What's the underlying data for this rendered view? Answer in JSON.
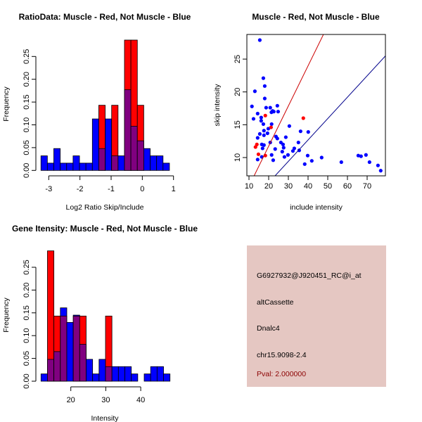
{
  "colors": {
    "muscle": "#ff0000",
    "not_muscle": "#0000ff",
    "overlap": "#800080",
    "info_bg": "#e5c7c2",
    "pval": "#8b0000"
  },
  "chart_data": [
    {
      "type": "bar",
      "subtype": "overlaid-histogram",
      "title": "RatioData: Muscle - Red, Not Muscle - Blue",
      "xlabel": "Log2 Ratio Skip/Include",
      "ylabel": "Frequency",
      "xlim": [
        -3.25,
        0.87
      ],
      "ylim": [
        0,
        0.29
      ],
      "xticks": [
        -3,
        -2,
        -1,
        0,
        1
      ],
      "yticks": [
        "0.00",
        "0.05",
        "0.10",
        "0.15",
        "0.20",
        "0.25"
      ],
      "bin_start": -3.25,
      "bin_width": 0.206,
      "series": [
        {
          "name": "Not Muscle",
          "color": "blue",
          "values": [
            0.032,
            0.016,
            0.048,
            0.016,
            0.016,
            0.032,
            0.016,
            0.016,
            0.113,
            0.048,
            0.113,
            0.032,
            0.032,
            0.177,
            0.097,
            0.065,
            0.048,
            0.032,
            0.032,
            0.016
          ]
        },
        {
          "name": "Muscle",
          "color": "red",
          "values": [
            0,
            0,
            0,
            0,
            0,
            0,
            0,
            0,
            0,
            0.143,
            0,
            0.143,
            0,
            0.286,
            0.286,
            0.143,
            0,
            0,
            0,
            0
          ]
        }
      ]
    },
    {
      "type": "scatter",
      "title": "Muscle - Red, Not Muscle - Blue",
      "xlabel": "include intensity",
      "ylabel": "skip intensity",
      "xlim": [
        8.9,
        79.3
      ],
      "ylim": [
        7.2,
        28.75
      ],
      "xticks": [
        10,
        20,
        30,
        40,
        50,
        60,
        70
      ],
      "yticks": [
        10,
        15,
        20,
        25
      ],
      "series": [
        {
          "name": "Not Muscle",
          "color": "blue",
          "points": [
            [
              15.5,
              27.9
            ],
            [
              17.3,
              22.1
            ],
            [
              18.0,
              20.9
            ],
            [
              13.0,
              20.1
            ],
            [
              18.0,
              19.0
            ],
            [
              11.5,
              17.8
            ],
            [
              18.7,
              17.6
            ],
            [
              20.8,
              17.6
            ],
            [
              24.4,
              17.9
            ],
            [
              22.0,
              17.1
            ],
            [
              22.6,
              17.0
            ],
            [
              21.4,
              16.9
            ],
            [
              24.8,
              17.0
            ],
            [
              14.4,
              16.7
            ],
            [
              16.2,
              16.1
            ],
            [
              12.3,
              15.9
            ],
            [
              16.2,
              15.6
            ],
            [
              17.3,
              15.1
            ],
            [
              21.5,
              15.1
            ],
            [
              30.5,
              14.8
            ],
            [
              19.8,
              14.4
            ],
            [
              17.6,
              14.1
            ],
            [
              36.2,
              14.0
            ],
            [
              40.1,
              13.9
            ],
            [
              19.4,
              13.7
            ],
            [
              15.5,
              13.6
            ],
            [
              17.6,
              13.4
            ],
            [
              23.7,
              13.2
            ],
            [
              14.4,
              13.0
            ],
            [
              24.4,
              12.9
            ],
            [
              28.7,
              13.1
            ],
            [
              20.8,
              12.3
            ],
            [
              26.2,
              12.3
            ],
            [
              35.1,
              12.3
            ],
            [
              16.5,
              12.0
            ],
            [
              17.6,
              11.9
            ],
            [
              27.3,
              12.0
            ],
            [
              16.9,
              11.4
            ],
            [
              27.6,
              11.5
            ],
            [
              23.3,
              11.3
            ],
            [
              33.0,
              11.4
            ],
            [
              32.3,
              11.0
            ],
            [
              35.5,
              11.1
            ],
            [
              26.9,
              10.9
            ],
            [
              21.5,
              10.4
            ],
            [
              29.8,
              10.4
            ],
            [
              16.5,
              10.1
            ],
            [
              28.0,
              10.1
            ],
            [
              39.8,
              10.3
            ],
            [
              46.9,
              10.0
            ],
            [
              14.4,
              9.7
            ],
            [
              22.3,
              9.6
            ],
            [
              41.9,
              9.5
            ],
            [
              56.9,
              9.3
            ],
            [
              65.5,
              10.3
            ],
            [
              66.9,
              10.2
            ],
            [
              69.4,
              10.4
            ],
            [
              71.2,
              9.3
            ],
            [
              38.3,
              9.0
            ],
            [
              75.5,
              8.8
            ],
            [
              76.9,
              8.0
            ]
          ]
        },
        {
          "name": "Muscle",
          "color": "red",
          "points": [
            [
              18.3,
              16.4
            ],
            [
              37.6,
              16.0
            ],
            [
              21.2,
              14.6
            ],
            [
              14.0,
              12.0
            ],
            [
              13.3,
              11.6
            ],
            [
              14.8,
              10.5
            ],
            [
              18.3,
              10.3
            ]
          ]
        }
      ],
      "lines": [
        {
          "name": "muscle-fit",
          "color": "#cc0000",
          "slope": 0.612,
          "intercept": -0.5
        },
        {
          "name": "not-muscle-fit",
          "color": "#00008b",
          "slope": 0.326,
          "intercept": -0.36
        }
      ]
    },
    {
      "type": "bar",
      "subtype": "overlaid-histogram",
      "title": "Gene Itensity: Muscle - Red, Not Muscle - Blue",
      "xlabel": "Intensity",
      "ylabel": "Frequency",
      "xlim": [
        11.47,
        48.4
      ],
      "ylim": [
        0,
        0.29
      ],
      "xticks": [
        20,
        30,
        40
      ],
      "yticks": [
        "0.00",
        "0.05",
        "0.10",
        "0.15",
        "0.20",
        "0.25"
      ],
      "bin_start": 11.47,
      "bin_width": 1.845,
      "series": [
        {
          "name": "Not Muscle",
          "color": "blue",
          "values": [
            0.016,
            0.048,
            0.065,
            0.161,
            0.129,
            0.145,
            0.081,
            0.048,
            0.016,
            0.048,
            0.032,
            0.032,
            0.032,
            0.032,
            0.016,
            0,
            0.016,
            0.032,
            0.032,
            0.016
          ]
        },
        {
          "name": "Muscle",
          "color": "red",
          "values": [
            0,
            0.286,
            0.143,
            0.143,
            0,
            0.143,
            0.143,
            0,
            0,
            0,
            0.143,
            0,
            0,
            0,
            0,
            0,
            0,
            0,
            0,
            0
          ]
        }
      ]
    }
  ],
  "info_panel": {
    "probe_id": "G6927932@J920451_RC@i_at",
    "event_type": "altCassette",
    "gene": "Dnalc4",
    "location": "chr15.9098-2.4",
    "pval": "Pval: 2.000000"
  }
}
